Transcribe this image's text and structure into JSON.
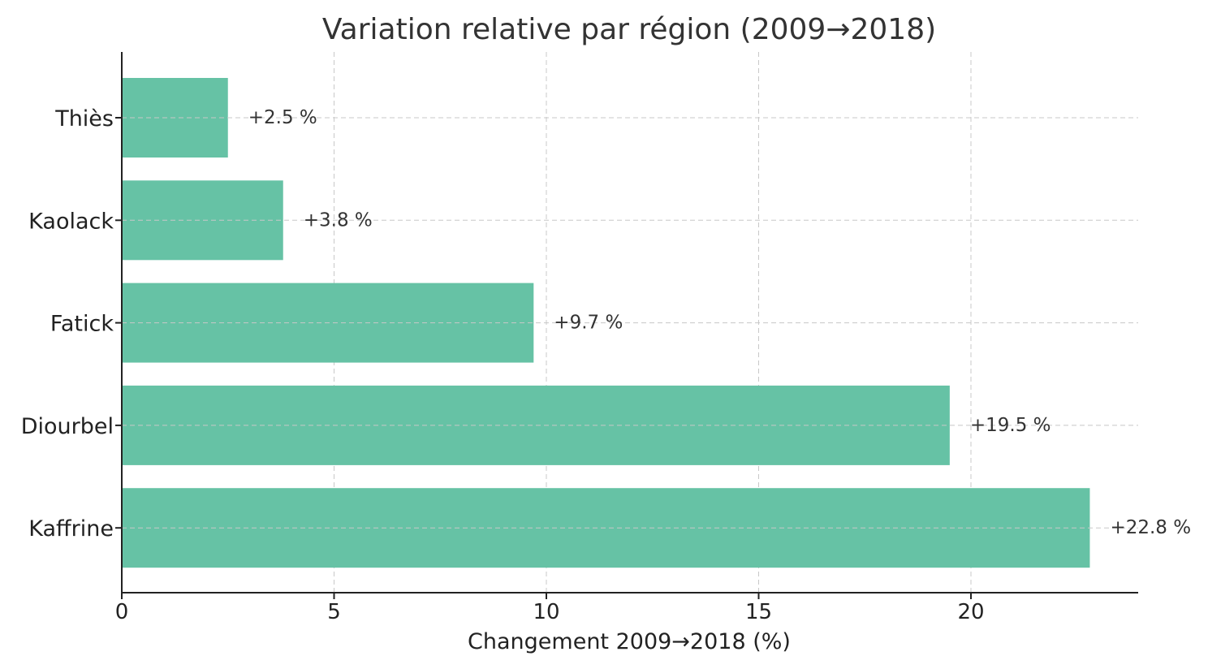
{
  "chart_data": {
    "type": "bar",
    "orientation": "horizontal",
    "title": "Variation relative par région (2009→2018)",
    "xlabel": "Changement 2009→2018 (%)",
    "ylabel": "",
    "categories": [
      "Thiès",
      "Kaolack",
      "Fatick",
      "Diourbel",
      "Kaffrine"
    ],
    "values": [
      2.5,
      3.8,
      9.7,
      19.5,
      22.8
    ],
    "data_labels": [
      "+2.5 %",
      "+3.8 %",
      "+9.7 %",
      "+19.5 %",
      "+22.8 %"
    ],
    "xlim": [
      0,
      24
    ],
    "xticks": [
      0,
      5,
      10,
      15,
      20
    ],
    "xtick_labels": [
      "0",
      "5",
      "10",
      "15",
      "20"
    ],
    "grid": true,
    "bar_color": "#66c2a5",
    "grid_color": "#c8c8c8"
  }
}
